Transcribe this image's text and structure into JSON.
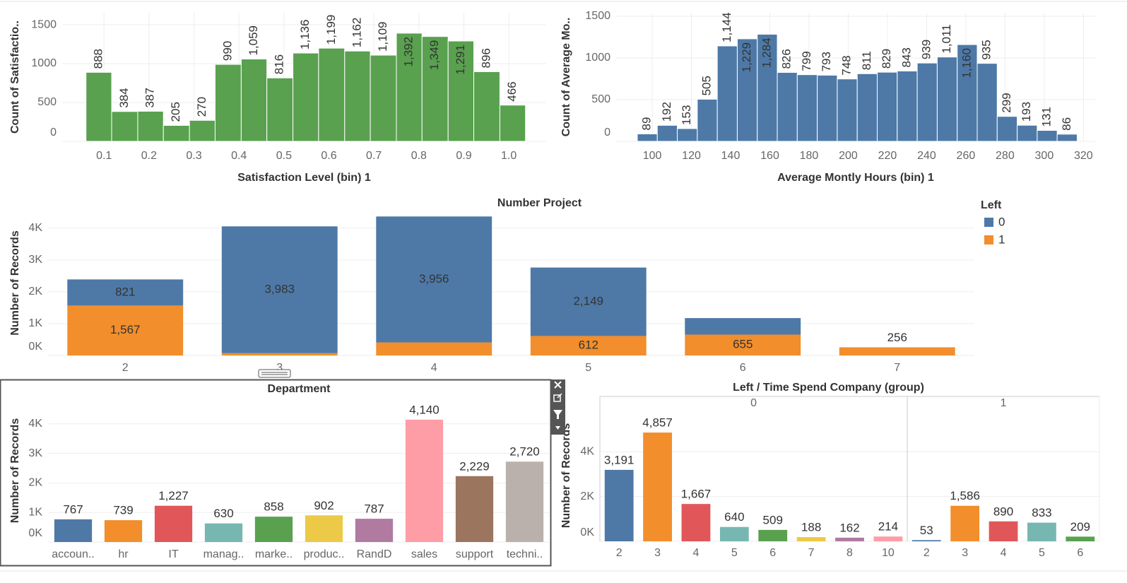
{
  "chart_data": [
    {
      "type": "histogram",
      "xlabel": "Satisfaction Level (bin) 1",
      "ylabel": "Count of Satisfactio..",
      "bins": [
        0.06,
        0.117,
        0.175,
        0.232,
        0.29,
        0.347,
        0.405,
        0.462,
        0.52,
        0.577,
        0.635,
        0.692,
        0.75,
        0.807,
        0.865,
        0.922,
        0.98,
        1.037
      ],
      "values": [
        888,
        384,
        387,
        205,
        270,
        990,
        1059,
        816,
        1136,
        1199,
        1162,
        1109,
        1392,
        1349,
        1291,
        896,
        466
      ],
      "value_labels": [
        "888",
        "384",
        "387",
        "205",
        "270",
        "990",
        "1,059",
        "816",
        "1,136",
        "1,199",
        "1,162",
        "1,109",
        "1,392",
        "1,349",
        "1,291",
        "896",
        "466"
      ],
      "color": "#59a14f",
      "xlim": [
        0.007,
        1.083
      ],
      "xticks": [
        0.1,
        0.2,
        0.3,
        0.4,
        0.5,
        0.6,
        0.7,
        0.8,
        0.9,
        {
          "value": 1,
          "label": "1.0"
        }
      ],
      "ylim": [
        0,
        1655
      ],
      "yticks": [
        0,
        500,
        1000,
        1500
      ],
      "grid": true
    },
    {
      "type": "histogram",
      "xlabel": "Average Montly Hours (bin) 1",
      "ylabel": "Count of Average Mo..",
      "bins": [
        92.4,
        102.6,
        112.8,
        123,
        133.2,
        143.4,
        153.6,
        163.8,
        174,
        184.2,
        194.4,
        204.6,
        214.8,
        225,
        235.2,
        245.4,
        255.6,
        265.8,
        276,
        286.2,
        296.4,
        306.6,
        316.8
      ],
      "values": [
        89,
        192,
        153,
        505,
        1144,
        1229,
        1284,
        826,
        799,
        793,
        748,
        811,
        829,
        843,
        939,
        1011,
        1160,
        935,
        299,
        193,
        131,
        86
      ],
      "value_labels": [
        "89",
        "192",
        "153",
        "505",
        "1,144",
        "1,229",
        "1,284",
        "826",
        "799",
        "793",
        "748",
        "811",
        "829",
        "843",
        "939",
        "1,011",
        "1,160",
        "935",
        "299",
        "193",
        "131",
        "86"
      ],
      "color": "#4e79a7",
      "xlim": [
        81.6,
        326
      ],
      "xticks": [
        100,
        120,
        140,
        160,
        180,
        200,
        220,
        240,
        260,
        280,
        300,
        320
      ],
      "ylim": [
        0,
        1542
      ],
      "yticks": [
        0,
        500,
        1000,
        1500
      ],
      "grid": true
    },
    {
      "type": "stacked_bar",
      "title": "Number Project",
      "ylabel": "Number of Records",
      "categories": [
        "2",
        "3",
        "4",
        "5",
        "6",
        "7"
      ],
      "series": [
        {
          "name": "0",
          "color": "#4e79a7",
          "values": [
            821,
            3983,
            3956,
            2149,
            519,
            null
          ],
          "value_labels": [
            "821",
            "3,983",
            "3,956",
            "2,149",
            null,
            null
          ]
        },
        {
          "name": "1",
          "color": "#f28e2b",
          "values": [
            1567,
            72,
            409,
            612,
            655,
            256
          ],
          "value_labels": [
            "1,567",
            null,
            null,
            "612",
            "655",
            "256"
          ]
        }
      ],
      "ylim": [
        0,
        4550
      ],
      "yticks": [
        {
          "value": 0,
          "label": "0K"
        },
        {
          "value": 1000,
          "label": "1K"
        },
        {
          "value": 2000,
          "label": "2K"
        },
        {
          "value": 3000,
          "label": "3K"
        },
        {
          "value": 4000,
          "label": "4K"
        }
      ],
      "legend_title": "Left",
      "legend": "right",
      "grid": true
    },
    {
      "type": "bar",
      "title": "Department",
      "ylabel": "Number of Records",
      "categories": [
        "accoun..",
        "hr",
        "IT",
        "manag..",
        "marke..",
        "produc..",
        "RandD",
        "sales",
        "support",
        "techni.."
      ],
      "values": [
        767,
        739,
        1227,
        630,
        858,
        902,
        787,
        4140,
        2229,
        2720
      ],
      "value_labels": [
        "767",
        "739",
        "1,227",
        "630",
        "858",
        "902",
        "787",
        "4,140",
        "2,229",
        "2,720"
      ],
      "colors": [
        "#4e79a7",
        "#f28e2b",
        "#e15759",
        "#76b7b2",
        "#59a14f",
        "#edc948",
        "#b07aa1",
        "#ff9da7",
        "#9c755f",
        "#bab0ac"
      ],
      "ylim": [
        0,
        4830
      ],
      "yticks": [
        {
          "value": 0,
          "label": "0K"
        },
        {
          "value": 1000,
          "label": "1K"
        },
        {
          "value": 2000,
          "label": "2K"
        },
        {
          "value": 3000,
          "label": "3K"
        },
        {
          "value": 4000,
          "label": "4K"
        }
      ],
      "grid": true
    },
    {
      "type": "panel_bar",
      "title": "Left / Time Spend Company (group)",
      "ylabel": "Number of Records",
      "panels": [
        {
          "name": "0",
          "categories": [
            "2",
            "3",
            "4",
            "5",
            "6",
            "7",
            "8",
            "10"
          ],
          "values": [
            3191,
            4857,
            1667,
            640,
            509,
            188,
            162,
            214
          ],
          "value_labels": [
            "3,191",
            "4,857",
            "1,667",
            "640",
            "509",
            "188",
            "162",
            "214"
          ],
          "colors": [
            "#4e79a7",
            "#f28e2b",
            "#e15759",
            "#76b7b2",
            "#59a14f",
            "#edc948",
            "#b07aa1",
            "#ff9da7"
          ]
        },
        {
          "name": "1",
          "categories": [
            "2",
            "3",
            "4",
            "5",
            "6"
          ],
          "values": [
            53,
            1586,
            890,
            833,
            209
          ],
          "value_labels": [
            "53",
            "1,586",
            "890",
            "833",
            "209"
          ],
          "colors": [
            "#4e79a7",
            "#f28e2b",
            "#e15759",
            "#76b7b2",
            "#59a14f"
          ]
        }
      ],
      "ylim": [
        0,
        5870
      ],
      "yticks": [
        {
          "value": 0,
          "label": "0K"
        },
        {
          "value": 2000,
          "label": "2K"
        },
        {
          "value": 4000,
          "label": "4K"
        }
      ],
      "grid": true
    }
  ]
}
